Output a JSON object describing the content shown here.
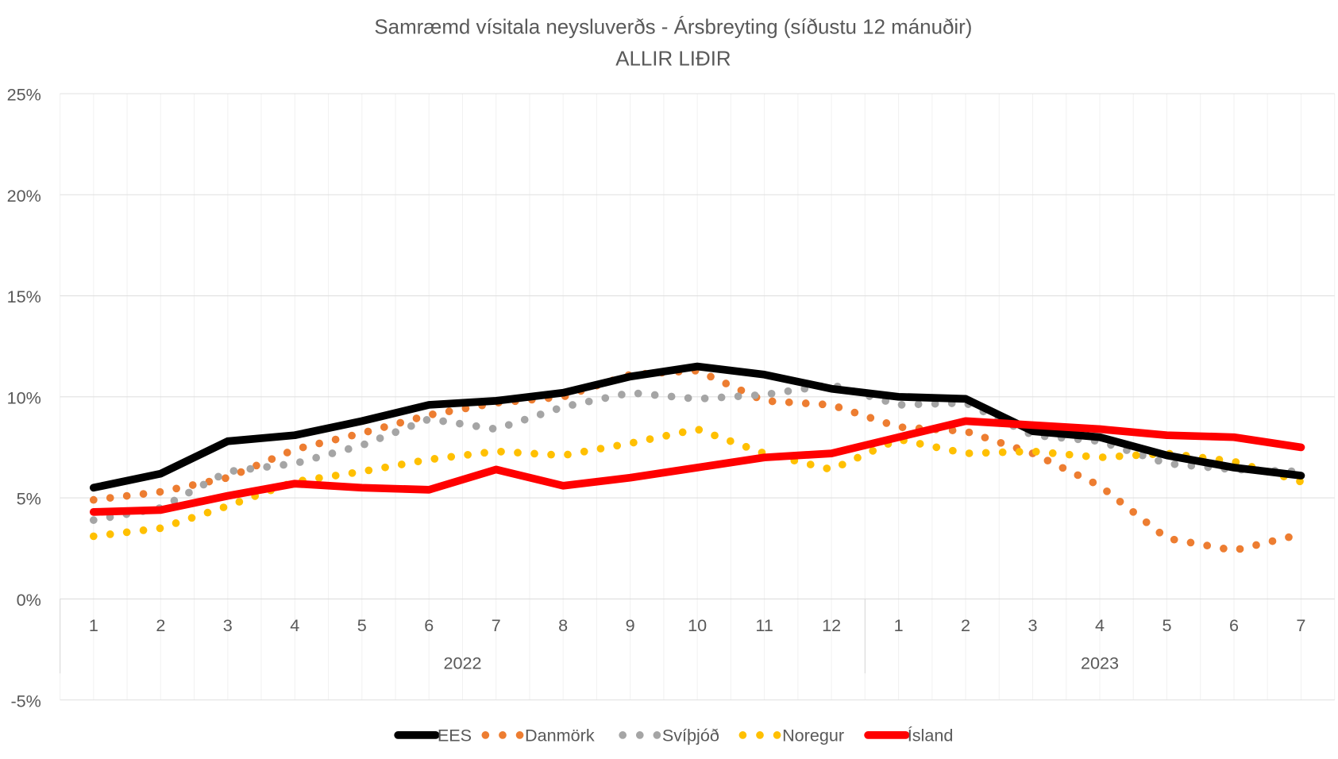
{
  "chart_data": {
    "type": "line",
    "title": "Samræmd vísitala neysluverðs - Ársbreyting (síðustu 12 mánuðir)",
    "subtitle": "ALLIR LIÐIR",
    "xlabel": "",
    "ylabel": "",
    "ylim": [
      -5,
      25
    ],
    "y_ticks": [
      "25%",
      "20%",
      "15%",
      "10%",
      "5%",
      "0%",
      "-5%"
    ],
    "y_tick_values": [
      25,
      20,
      15,
      10,
      5,
      0,
      -5
    ],
    "categories": [
      "1",
      "2",
      "3",
      "4",
      "5",
      "6",
      "7",
      "8",
      "9",
      "10",
      "11",
      "12",
      "1",
      "2",
      "3",
      "4",
      "5",
      "6",
      "7"
    ],
    "year_groups": [
      {
        "label": "2022",
        "count": 12
      },
      {
        "label": "2023",
        "count": 7
      }
    ],
    "grid": true,
    "legend_placement": "bottom",
    "series": [
      {
        "name": "EES",
        "color": "#000000",
        "style": "solid",
        "values": [
          5.5,
          6.2,
          7.8,
          8.1,
          8.8,
          9.6,
          9.8,
          10.2,
          11.0,
          11.5,
          11.1,
          10.4,
          10.0,
          9.9,
          8.3,
          8.0,
          7.1,
          6.5,
          6.1
        ]
      },
      {
        "name": "Danmörk",
        "color": "#ED7D31",
        "style": "dotted",
        "values": [
          4.9,
          5.3,
          6.0,
          7.4,
          8.2,
          9.1,
          9.7,
          10.0,
          11.1,
          11.3,
          9.8,
          9.6,
          8.5,
          8.3,
          7.2,
          5.6,
          3.0,
          2.4,
          3.2
        ]
      },
      {
        "name": "Svíþjóð",
        "color": "#A5A5A5",
        "style": "dotted",
        "values": [
          3.9,
          4.5,
          6.3,
          6.7,
          7.6,
          8.9,
          8.4,
          9.5,
          10.2,
          9.9,
          10.1,
          10.6,
          9.6,
          9.7,
          8.1,
          7.8,
          6.7,
          6.4,
          6.3
        ]
      },
      {
        "name": "Noregur",
        "color": "#FFC000",
        "style": "dotted",
        "values": [
          3.1,
          3.5,
          4.6,
          5.8,
          6.3,
          6.9,
          7.3,
          7.1,
          7.7,
          8.4,
          7.2,
          6.4,
          7.9,
          7.2,
          7.3,
          7.0,
          7.2,
          6.8,
          5.8
        ]
      },
      {
        "name": "Ísland",
        "color": "#FF0000",
        "style": "solid",
        "values": [
          4.3,
          4.4,
          5.1,
          5.7,
          5.5,
          5.4,
          6.4,
          5.6,
          6.0,
          6.5,
          7.0,
          7.2,
          8.0,
          8.8,
          8.6,
          8.4,
          8.1,
          8.0,
          7.5
        ]
      }
    ]
  }
}
